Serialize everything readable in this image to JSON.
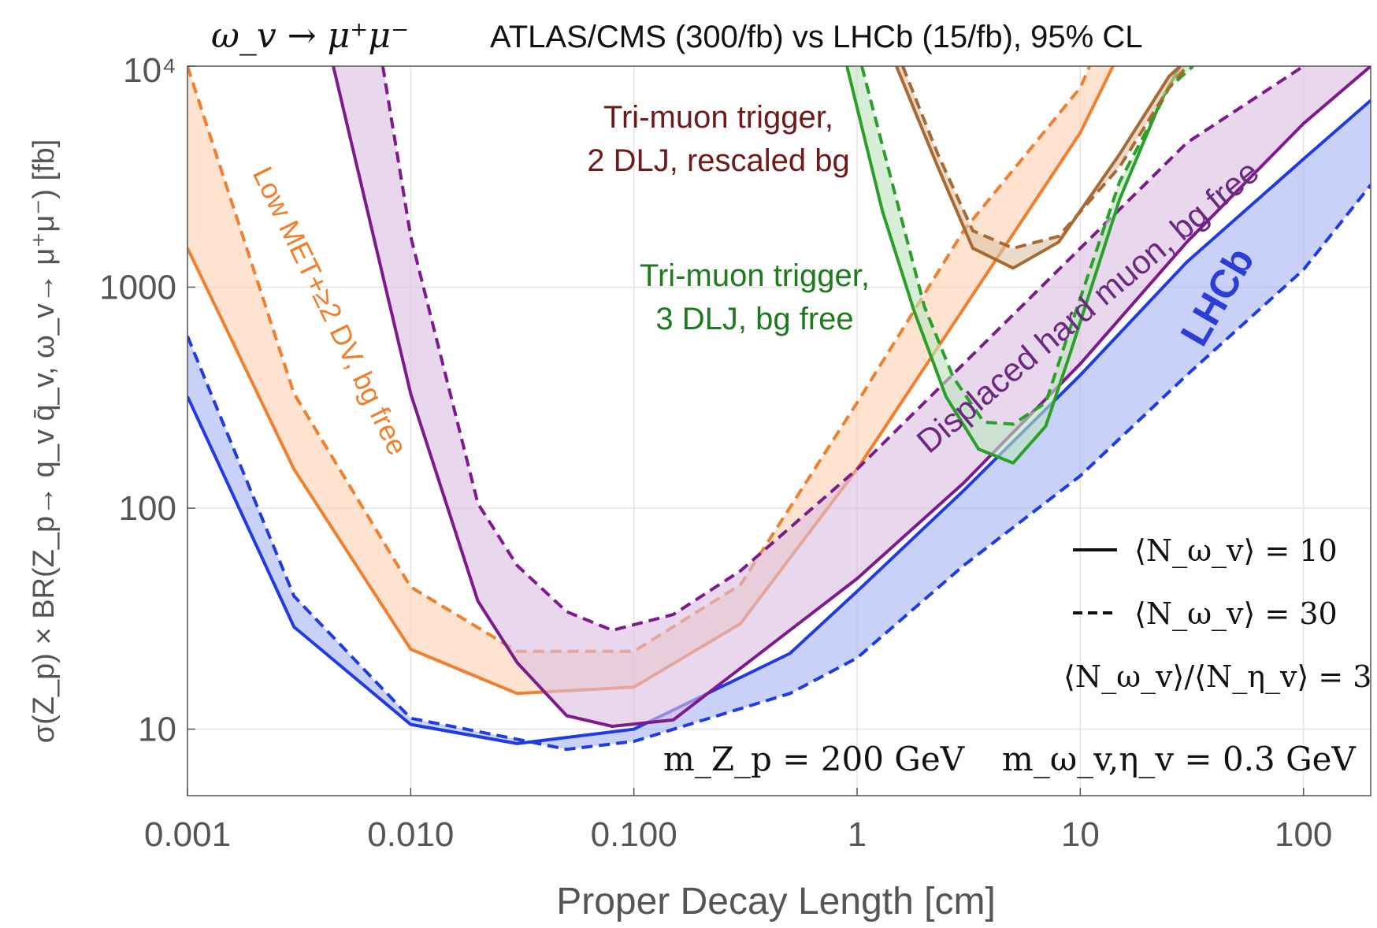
{
  "chart_data": {
    "type": "line",
    "title_parts": {
      "process": "ω_v → μ⁺μ⁻",
      "rest": "ATLAS/CMS (300/fb) vs LHCb (15/fb),  95% CL"
    },
    "xlabel": "Proper Decay Length [cm]",
    "ylabel": "σ(Z_p) × BR(Z_p→ q_v q̄_v,  ω_v→ μ⁺μ⁻) [fb]",
    "x_scale": "log",
    "y_scale": "log",
    "xlim": [
      0.001,
      200
    ],
    "ylim": [
      5,
      10000
    ],
    "x_ticks": [
      {
        "value": 0.001,
        "label": "0.001"
      },
      {
        "value": 0.01,
        "label": "0.010"
      },
      {
        "value": 0.1,
        "label": "0.100"
      },
      {
        "value": 1,
        "label": "1"
      },
      {
        "value": 10,
        "label": "10"
      },
      {
        "value": 100,
        "label": "100"
      }
    ],
    "y_ticks": [
      {
        "value": 10,
        "label": "10"
      },
      {
        "value": 100,
        "label": "100"
      },
      {
        "value": 1000,
        "label": "1000"
      },
      {
        "value": 10000,
        "label": "10⁴"
      }
    ],
    "grid": true,
    "bands": [
      {
        "id": "lhcb",
        "color": "#1f3be6",
        "fill": "#aab4f5",
        "n10": [
          [
            0.001,
            320
          ],
          [
            0.003,
            29
          ],
          [
            0.01,
            10.5
          ],
          [
            0.03,
            8.6
          ],
          [
            0.1,
            10
          ],
          [
            0.5,
            22
          ],
          [
            1,
            42
          ],
          [
            3,
            120
          ],
          [
            10,
            400
          ],
          [
            30,
            1300
          ],
          [
            100,
            3800
          ],
          [
            200,
            7000
          ]
        ],
        "n30": [
          [
            0.001,
            600
          ],
          [
            0.003,
            40
          ],
          [
            0.01,
            11.2
          ],
          [
            0.03,
            9
          ],
          [
            0.05,
            8.1
          ],
          [
            0.1,
            8.8
          ],
          [
            0.5,
            14.5
          ],
          [
            1,
            21
          ],
          [
            3,
            55
          ],
          [
            10,
            140
          ],
          [
            30,
            400
          ],
          [
            100,
            1200
          ],
          [
            200,
            2900
          ]
        ]
      },
      {
        "id": "lowmet",
        "color": "#f07f2e",
        "fill": "#fdd3b3",
        "n10": [
          [
            0.001,
            1500
          ],
          [
            0.003,
            150
          ],
          [
            0.01,
            23
          ],
          [
            0.03,
            14.5
          ],
          [
            0.1,
            15.5
          ],
          [
            0.3,
            30
          ],
          [
            1,
            150
          ],
          [
            3,
            800
          ],
          [
            10,
            5000
          ],
          [
            14,
            10000
          ]
        ],
        "n30": [
          [
            0.001,
            10000
          ],
          [
            0.003,
            330
          ],
          [
            0.01,
            44
          ],
          [
            0.03,
            22.5
          ],
          [
            0.1,
            22.5
          ],
          [
            0.3,
            45
          ],
          [
            1,
            300
          ],
          [
            3,
            1800
          ],
          [
            10,
            8000
          ],
          [
            11,
            10000
          ]
        ]
      },
      {
        "id": "hardmuon",
        "color": "#7d1a8c",
        "fill": "#dcbfe2",
        "n10": [
          [
            0.0045,
            10000
          ],
          [
            0.01,
            330
          ],
          [
            0.02,
            38
          ],
          [
            0.03,
            20
          ],
          [
            0.05,
            11.5
          ],
          [
            0.08,
            10.3
          ],
          [
            0.15,
            11
          ],
          [
            0.5,
            28
          ],
          [
            1,
            48
          ],
          [
            3,
            130
          ],
          [
            10,
            450
          ],
          [
            30,
            1600
          ],
          [
            100,
            5500
          ],
          [
            200,
            10000
          ]
        ],
        "n30": [
          [
            0.0075,
            10000
          ],
          [
            0.01,
            1700
          ],
          [
            0.02,
            105
          ],
          [
            0.03,
            55
          ],
          [
            0.05,
            34
          ],
          [
            0.08,
            28
          ],
          [
            0.15,
            33
          ],
          [
            0.3,
            52
          ],
          [
            1,
            150
          ],
          [
            3,
            450
          ],
          [
            10,
            1500
          ],
          [
            30,
            4500
          ],
          [
            100,
            10000
          ]
        ]
      },
      {
        "id": "trimuon3",
        "color": "#2aa02a",
        "fill": "#bde5bd",
        "n10": [
          [
            0.9,
            10000
          ],
          [
            1.3,
            2200
          ],
          [
            1.8,
            780
          ],
          [
            2.5,
            320
          ],
          [
            3.5,
            185
          ],
          [
            5,
            160
          ],
          [
            7,
            235
          ],
          [
            9,
            500
          ],
          [
            15,
            2500
          ],
          [
            23,
            7000
          ],
          [
            28,
            10000
          ]
        ],
        "n30": [
          [
            1.05,
            10000
          ],
          [
            1.5,
            2500
          ],
          [
            2,
            820
          ],
          [
            2.7,
            390
          ],
          [
            3.7,
            245
          ],
          [
            5,
            240
          ],
          [
            7,
            300
          ],
          [
            9,
            650
          ],
          [
            15,
            3000
          ],
          [
            25,
            8000
          ],
          [
            32,
            10000
          ]
        ]
      },
      {
        "id": "trimuon2",
        "color": "#a86a32",
        "fill": "#dcc3a8",
        "n10": [
          [
            1.5,
            10000
          ],
          [
            2.3,
            3500
          ],
          [
            3.3,
            1500
          ],
          [
            5,
            1220
          ],
          [
            8,
            1600
          ],
          [
            15,
            4000
          ],
          [
            25,
            9000
          ],
          [
            28,
            10000
          ]
        ],
        "n30": [
          [
            1.6,
            10000
          ],
          [
            2.3,
            4000
          ],
          [
            3.3,
            1800
          ],
          [
            5,
            1500
          ],
          [
            8,
            1700
          ],
          [
            15,
            3500
          ],
          [
            25,
            8000
          ],
          [
            30,
            10000
          ]
        ]
      }
    ],
    "annotations": [
      {
        "id": "trimuon2-label",
        "lines": [
          "Tri-muon trigger,",
          "2 DLJ, rescaled bg"
        ],
        "color": "#6e1a1a"
      },
      {
        "id": "trimuon3-label",
        "lines": [
          "Tri-muon trigger,",
          "3 DLJ, bg free"
        ],
        "color": "#1f7a1f"
      },
      {
        "id": "lowmet-label",
        "text": "Low MET+≥2 DV, bg free",
        "color": "#f07f2e"
      },
      {
        "id": "hardmuon-label",
        "text": "Displaced hard muon, bg free",
        "color": "#6a2a80"
      },
      {
        "id": "lhcb-label",
        "text": "LHCb",
        "color": "#2b3fd6"
      }
    ],
    "legend": {
      "placement": "bottom-right",
      "entries": [
        {
          "style": "solid",
          "label": "⟨N_ω_v⟩ = 10"
        },
        {
          "style": "dashed",
          "label": "⟨N_ω_v⟩ = 30"
        }
      ],
      "note": "⟨N_ω_v⟩/⟨N_η_v⟩ = 3"
    },
    "masses": {
      "mzp": "m_Z_p = 200 GeV",
      "momega": "m_ω_v,η_v = 0.3 GeV"
    }
  }
}
